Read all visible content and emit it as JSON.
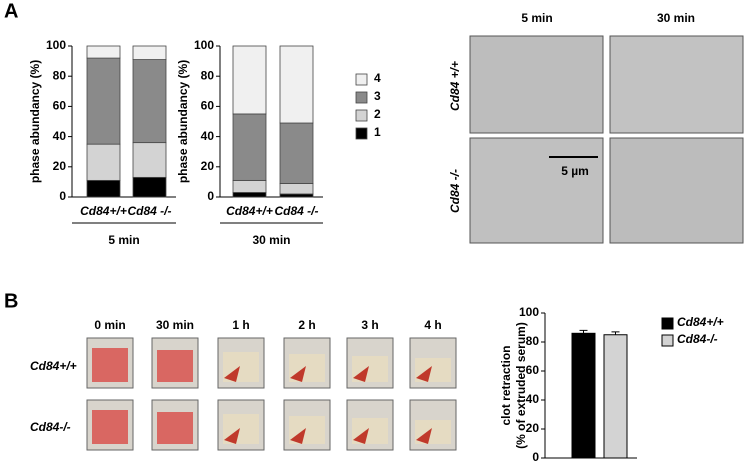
{
  "figure": {
    "panel_a": "A",
    "panel_b": "B",
    "micro_cols": [
      "5 min",
      "30 min"
    ],
    "micro_rows": [
      "Cd84 +/+",
      "Cd84 -/-"
    ],
    "scale_bar": "5 µm",
    "clot_cols": [
      "0 min",
      "30 min",
      "1 h",
      "2 h",
      "3 h",
      "4 h"
    ],
    "clot_rows": [
      "Cd84+/+",
      "Cd84-/-"
    ]
  },
  "chart_data": [
    {
      "type": "stacked-bar",
      "ylabel": "phase abundancy (%)",
      "group_label": "5 min",
      "categories": [
        "Cd84+/+",
        "Cd84 -/-"
      ],
      "ylim": [
        0,
        100
      ],
      "yticks": [
        0,
        20,
        40,
        60,
        80,
        100
      ],
      "series": [
        {
          "name": "1",
          "color": "#000000",
          "values": [
            11,
            13
          ]
        },
        {
          "name": "2",
          "color": "#d3d3d3",
          "values": [
            24,
            23
          ]
        },
        {
          "name": "3",
          "color": "#8a8a8a",
          "values": [
            57,
            55
          ]
        },
        {
          "name": "4",
          "color": "#f0f0f0",
          "values": [
            8,
            9
          ]
        }
      ]
    },
    {
      "type": "stacked-bar",
      "ylabel": "phase abundancy (%)",
      "group_label": "30 min",
      "categories": [
        "Cd84+/+",
        "Cd84 -/-"
      ],
      "ylim": [
        0,
        100
      ],
      "yticks": [
        0,
        20,
        40,
        60,
        80,
        100
      ],
      "legend": "right",
      "series": [
        {
          "name": "1",
          "color": "#000000",
          "values": [
            3,
            2
          ]
        },
        {
          "name": "2",
          "color": "#d3d3d3",
          "values": [
            8,
            7
          ]
        },
        {
          "name": "3",
          "color": "#8a8a8a",
          "values": [
            44,
            40
          ]
        },
        {
          "name": "4",
          "color": "#f0f0f0",
          "values": [
            45,
            51
          ]
        }
      ]
    },
    {
      "type": "bar",
      "ylabel": [
        "clot retraction",
        "(% of extruded serum)"
      ],
      "ylim": [
        0,
        100
      ],
      "yticks": [
        0,
        20,
        40,
        60,
        80,
        100
      ],
      "legend": "right",
      "series": [
        {
          "name": "Cd84+/+",
          "color": "#000000",
          "values": [
            86
          ],
          "error": [
            2
          ]
        },
        {
          "name": "Cd84-/-",
          "color": "#d3d3d3",
          "values": [
            85
          ],
          "error": [
            2
          ]
        }
      ]
    }
  ]
}
